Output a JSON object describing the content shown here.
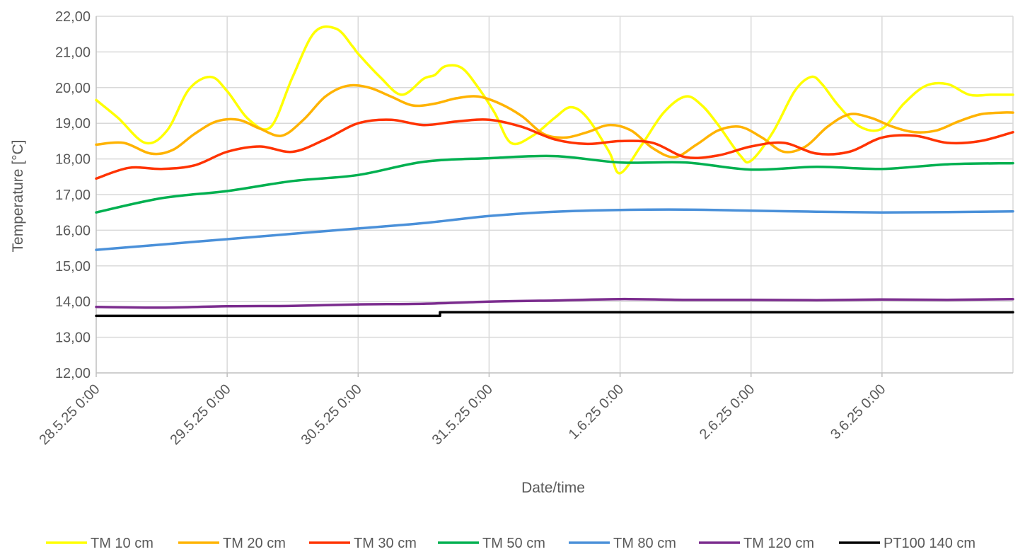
{
  "chart_data": {
    "type": "line",
    "title": "",
    "xlabel": "Date/time",
    "ylabel": "Temperature [°C]",
    "ylim": [
      12,
      22
    ],
    "y_ticks": [
      "12,00",
      "13,00",
      "14,00",
      "15,00",
      "16,00",
      "17,00",
      "18,00",
      "19,00",
      "20,00",
      "21,00",
      "22,00"
    ],
    "x_range_days": [
      "28.5.25 0:00",
      "4.6.25 0:00"
    ],
    "x_ticks": [
      "28.5.25 0:00",
      "29.5.25 0:00",
      "30.5.25 0:00",
      "31.5.25 0:00",
      "1.6.25 0:00",
      "2.6.25 0:00",
      "3.6.25 0:00"
    ],
    "grid": true,
    "legend_position": "bottom",
    "series": [
      {
        "name": "TM 10 cm",
        "color": "#FFFF00",
        "x": [
          "28.5.25 0:00",
          "28.5.25 4:00",
          "28.5.25 9:00",
          "28.5.25 13:00",
          "28.5.25 17:00",
          "28.5.25 21:00",
          "29.5.25 0:00",
          "29.5.25 4:00",
          "29.5.25 8:00",
          "29.5.25 12:00",
          "29.5.25 16:00",
          "29.5.25 20:00",
          "29.5.25 23:00",
          "30.5.25 0:00",
          "30.5.25 4:00",
          "30.5.25 8:00",
          "30.5.25 12:00",
          "30.5.25 14:00",
          "30.5.25 16:00",
          "30.5.25 19:00",
          "30.5.25 22:00",
          "31.5.25 1:00",
          "31.5.25 4:00",
          "31.5.25 8:00",
          "31.5.25 12:00",
          "31.5.25 15:00",
          "31.5.25 18:00",
          "31.5.25 22:00",
          "1.6.25 0:00",
          "1.6.25 4:00",
          "1.6.25 8:00",
          "1.6.25 12:00",
          "1.6.25 15:00",
          "1.6.25 18:00",
          "1.6.25 22:00",
          "2.6.25 0:00",
          "2.6.25 4:00",
          "2.6.25 8:00",
          "2.6.25 11:00",
          "2.6.25 13:00",
          "2.6.25 16:00",
          "2.6.25 20:00",
          "3.6.25 0:00",
          "3.6.25 4:00",
          "3.6.25 8:00",
          "3.6.25 12:00",
          "3.6.25 16:00",
          "3.6.25 20:00",
          "4.6.25 0:00"
        ],
        "values": [
          19.65,
          19.15,
          18.45,
          18.8,
          19.95,
          20.3,
          19.9,
          19.1,
          18.9,
          20.3,
          21.55,
          21.65,
          21.15,
          20.95,
          20.3,
          19.8,
          20.25,
          20.35,
          20.6,
          20.55,
          20.0,
          19.3,
          18.45,
          18.65,
          19.15,
          19.45,
          19.15,
          18.2,
          17.6,
          18.4,
          19.3,
          19.75,
          19.5,
          18.95,
          18.1,
          17.95,
          18.75,
          19.9,
          20.3,
          20.1,
          19.5,
          18.9,
          18.85,
          19.55,
          20.05,
          20.1,
          19.8,
          19.8,
          19.8
        ]
      },
      {
        "name": "TM 20 cm",
        "color": "#FFB300",
        "x": [
          "28.5.25 0:00",
          "28.5.25 5:00",
          "28.5.25 10:00",
          "28.5.25 14:00",
          "28.5.25 18:00",
          "28.5.25 22:00",
          "29.5.25 2:00",
          "29.5.25 6:00",
          "29.5.25 10:00",
          "29.5.25 14:00",
          "29.5.25 18:00",
          "29.5.25 22:00",
          "30.5.25 2:00",
          "30.5.25 6:00",
          "30.5.25 10:00",
          "30.5.25 14:00",
          "30.5.25 18:00",
          "30.5.25 22:00",
          "31.5.25 2:00",
          "31.5.25 6:00",
          "31.5.25 10:00",
          "31.5.25 14:00",
          "31.5.25 18:00",
          "31.5.25 22:00",
          "1.6.25 2:00",
          "1.6.25 6:00",
          "1.6.25 10:00",
          "1.6.25 14:00",
          "1.6.25 18:00",
          "1.6.25 22:00",
          "2.6.25 2:00",
          "2.6.25 6:00",
          "2.6.25 10:00",
          "2.6.25 14:00",
          "2.6.25 18:00",
          "2.6.25 22:00",
          "3.6.25 2:00",
          "3.6.25 6:00",
          "3.6.25 10:00",
          "3.6.25 14:00",
          "3.6.25 18:00",
          "3.6.25 22:00",
          "4.6.25 0:00"
        ],
        "values": [
          18.4,
          18.45,
          18.15,
          18.25,
          18.7,
          19.05,
          19.1,
          18.85,
          18.65,
          19.1,
          19.75,
          20.05,
          20.0,
          19.75,
          19.5,
          19.55,
          19.7,
          19.75,
          19.55,
          19.2,
          18.7,
          18.6,
          18.75,
          18.95,
          18.8,
          18.3,
          18.05,
          18.4,
          18.8,
          18.9,
          18.6,
          18.2,
          18.35,
          18.9,
          19.25,
          19.15,
          18.9,
          18.75,
          18.8,
          19.05,
          19.25,
          19.3,
          19.3
        ]
      },
      {
        "name": "TM 30 cm",
        "color": "#FF3300",
        "x": [
          "28.5.25 0:00",
          "28.5.25 6:00",
          "28.5.25 12:00",
          "28.5.25 18:00",
          "29.5.25 0:00",
          "29.5.25 6:00",
          "29.5.25 12:00",
          "29.5.25 18:00",
          "30.5.25 0:00",
          "30.5.25 6:00",
          "30.5.25 12:00",
          "30.5.25 18:00",
          "31.5.25 0:00",
          "31.5.25 6:00",
          "31.5.25 12:00",
          "31.5.25 18:00",
          "1.6.25 0:00",
          "1.6.25 6:00",
          "1.6.25 12:00",
          "1.6.25 18:00",
          "2.6.25 0:00",
          "2.6.25 6:00",
          "2.6.25 12:00",
          "2.6.25 18:00",
          "3.6.25 0:00",
          "3.6.25 6:00",
          "3.6.25 12:00",
          "3.6.25 18:00",
          "4.6.25 0:00"
        ],
        "values": [
          17.45,
          17.75,
          17.72,
          17.82,
          18.2,
          18.35,
          18.2,
          18.55,
          19.0,
          19.1,
          18.95,
          19.05,
          19.1,
          18.9,
          18.55,
          18.42,
          18.5,
          18.45,
          18.05,
          18.1,
          18.35,
          18.45,
          18.15,
          18.2,
          18.6,
          18.65,
          18.45,
          18.5,
          18.75
        ]
      },
      {
        "name": "TM 50 cm",
        "color": "#00B050",
        "x": [
          "28.5.25 0:00",
          "28.5.25 12:00",
          "29.5.25 0:00",
          "29.5.25 12:00",
          "30.5.25 0:00",
          "30.5.25 12:00",
          "31.5.25 0:00",
          "31.5.25 12:00",
          "1.6.25 0:00",
          "1.6.25 12:00",
          "2.6.25 0:00",
          "2.6.25 12:00",
          "3.6.25 0:00",
          "3.6.25 12:00",
          "4.6.25 0:00"
        ],
        "values": [
          16.5,
          16.9,
          17.1,
          17.38,
          17.55,
          17.92,
          18.02,
          18.08,
          17.9,
          17.9,
          17.7,
          17.78,
          17.72,
          17.85,
          17.88
        ]
      },
      {
        "name": "TM 80 cm",
        "color": "#4A90D9",
        "x": [
          "28.5.25 0:00",
          "28.5.25 12:00",
          "29.5.25 0:00",
          "29.5.25 12:00",
          "30.5.25 0:00",
          "30.5.25 12:00",
          "31.5.25 0:00",
          "31.5.25 12:00",
          "1.6.25 0:00",
          "1.6.25 12:00",
          "2.6.25 0:00",
          "2.6.25 12:00",
          "3.6.25 0:00",
          "3.6.25 12:00",
          "4.6.25 0:00"
        ],
        "values": [
          15.45,
          15.6,
          15.75,
          15.9,
          16.05,
          16.2,
          16.4,
          16.52,
          16.57,
          16.58,
          16.55,
          16.52,
          16.5,
          16.51,
          16.53
        ]
      },
      {
        "name": "TM 120 cm",
        "color": "#7B2C8E",
        "x": [
          "28.5.25 0:00",
          "28.5.25 12:00",
          "29.5.25 0:00",
          "29.5.25 12:00",
          "30.5.25 0:00",
          "30.5.25 12:00",
          "31.5.25 0:00",
          "31.5.25 12:00",
          "1.6.25 0:00",
          "1.6.25 12:00",
          "2.6.25 0:00",
          "2.6.25 12:00",
          "3.6.25 0:00",
          "3.6.25 12:00",
          "4.6.25 0:00"
        ],
        "values": [
          13.85,
          13.83,
          13.87,
          13.88,
          13.92,
          13.94,
          14.0,
          14.03,
          14.07,
          14.05,
          14.05,
          14.04,
          14.06,
          14.05,
          14.07
        ]
      },
      {
        "name": "PT100 140 cm",
        "color": "#000000",
        "x": [
          "28.5.25 0:00",
          "30.5.25 15:00",
          "30.5.25 15:00",
          "31.5.25 0:00",
          "4.6.25 0:00"
        ],
        "values": [
          13.6,
          13.6,
          13.7,
          13.7,
          13.7
        ]
      }
    ]
  }
}
